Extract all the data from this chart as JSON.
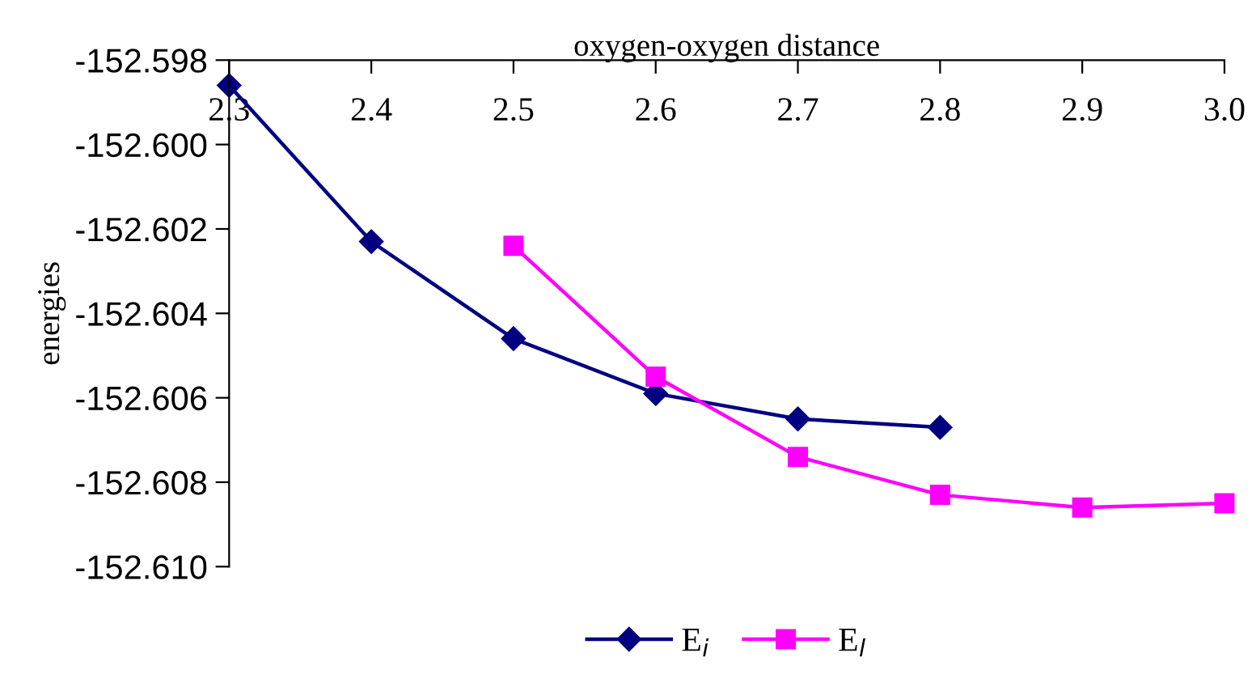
{
  "chart_data": {
    "type": "line",
    "xlabel": "oxygen-oxygen distance",
    "ylabel": "energies",
    "x": [
      2.3,
      2.4,
      2.5,
      2.6,
      2.7,
      2.8,
      2.9,
      3.0
    ],
    "series": [
      {
        "name": "E$_{i}$",
        "color": "#000080",
        "marker": "diamond",
        "values": [
          -152.5986,
          -152.6023,
          -152.6046,
          -152.6059,
          -152.6065,
          -152.6067,
          null,
          null
        ]
      },
      {
        "name": "E$_{l}$",
        "color": "#ff00ff",
        "marker": "square",
        "values": [
          null,
          null,
          -152.6024,
          -152.6055,
          -152.6074,
          -152.6083,
          -152.6086,
          -152.6085
        ]
      }
    ],
    "xlim": [
      2.3,
      3.0
    ],
    "xticks": [
      2.3,
      2.4,
      2.5,
      2.6,
      2.7,
      2.8,
      2.9,
      {
        "value": 3.0,
        "label": "3.0"
      }
    ],
    "ylim": [
      -152.61,
      -152.598
    ],
    "yticks": [
      {
        "value": -152.598,
        "label": "-152.598"
      },
      {
        "value": -152.6,
        "label": "-152.600"
      },
      {
        "value": -152.602,
        "label": "-152.602"
      },
      {
        "value": -152.604,
        "label": "-152.604"
      },
      {
        "value": -152.606,
        "label": "-152.606"
      },
      {
        "value": -152.608,
        "label": "-152.608"
      },
      {
        "value": -152.61,
        "label": "-152.610"
      }
    ],
    "grid": false,
    "legend": "bottom",
    "line_style": "solid"
  }
}
